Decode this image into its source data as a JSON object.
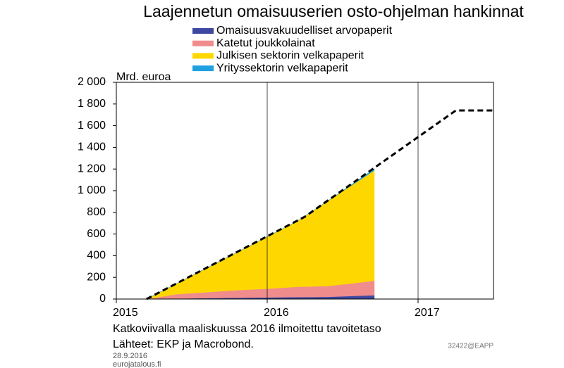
{
  "chart_data": {
    "type": "stacked-area",
    "title": "Laajennetun omaisuuserien osto-ohjelman hankinnat",
    "y_label": "Mrd. euroa",
    "note": "Katkoviivalla maaliskuussa 2016 ilmoitettu tavoitetaso",
    "source": "Lähteet: EKP ja Macrobond.",
    "date": "28.9.2016",
    "site": "eurojatalous.fi",
    "code": "32422@EAPP",
    "x": [
      2015.2,
      2015.4,
      2015.6,
      2015.8,
      2016.0,
      2016.2,
      2016.4,
      2016.5,
      2016.6,
      2016.71
    ],
    "series": [
      {
        "name": "Omaisuusvakuudelliset arvopaperit",
        "color": "#3f48a0",
        "values": [
          0,
          5,
          8,
          12,
          15,
          18,
          20,
          25,
          30,
          35
        ]
      },
      {
        "name": "Katetut joukkolainat",
        "color": "#f08c8c",
        "values": [
          0,
          40,
          55,
          70,
          80,
          95,
          100,
          110,
          120,
          135
        ]
      },
      {
        "name": "Julkisen sektorin velkapaperit",
        "color": "#ffd700",
        "values": [
          0,
          99,
          225,
          350,
          481,
          607,
          784,
          860,
          936,
          1017
        ]
      },
      {
        "name": "Yrityssektorin velkapaperit",
        "color": "#1fa0e0",
        "values": [
          0,
          0,
          0,
          0,
          0,
          0,
          0,
          5,
          10,
          15
        ]
      }
    ],
    "target_line": {
      "x": [
        2015.2,
        2016.25,
        2017.25,
        2017.5
      ],
      "values": [
        0,
        760,
        1740,
        1740
      ],
      "color": "#000000"
    },
    "xlim": [
      2015,
      2017.5
    ],
    "xticks": [
      2015,
      2016,
      2017
    ],
    "ylim": [
      0,
      2000
    ],
    "yticks": [
      0,
      200,
      400,
      600,
      800,
      {
        "value": 1000,
        "label": "1 000"
      },
      {
        "value": 1200,
        "label": "1 200"
      },
      {
        "value": 1400,
        "label": "1 400"
      },
      {
        "value": 1600,
        "label": "1 600"
      },
      {
        "value": 1800,
        "label": "1 800"
      },
      {
        "value": 2000,
        "label": "2 000"
      }
    ],
    "grid": true
  }
}
